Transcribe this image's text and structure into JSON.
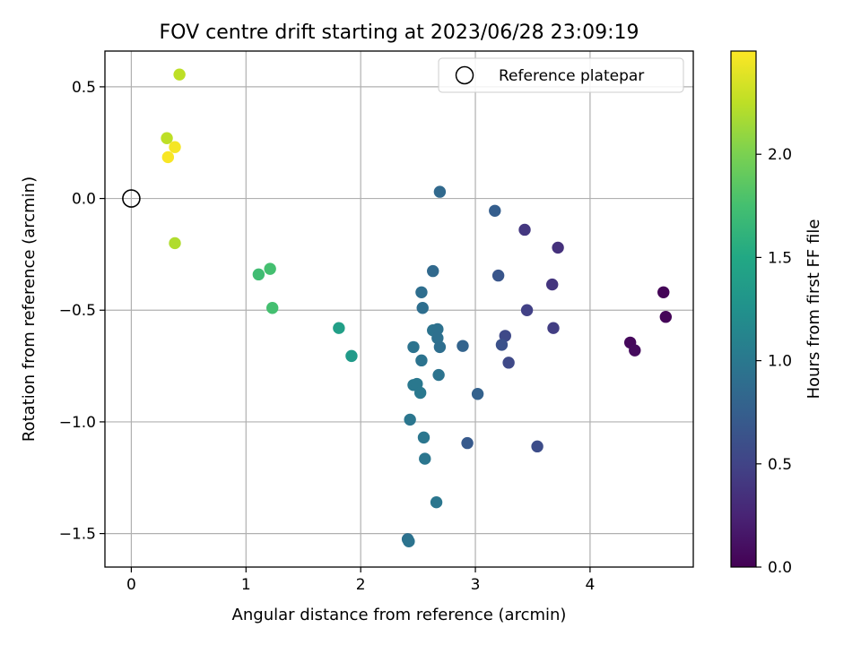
{
  "chart_data": {
    "type": "scatter",
    "title": "FOV centre drift starting at 2023/06/28 23:09:19",
    "xlabel": "Angular distance from reference (arcmin)",
    "ylabel": "Rotation from reference (arcmin)",
    "xlim": [
      -0.23,
      4.9
    ],
    "ylim": [
      -1.65,
      0.66
    ],
    "xticks": [
      0,
      1,
      2,
      3,
      4
    ],
    "yticks": [
      0.5,
      0.0,
      -0.5,
      -1.0,
      -1.5
    ],
    "xtick_labels": [
      "0",
      "1",
      "2",
      "3",
      "4"
    ],
    "ytick_labels": [
      "0.5",
      "0.0",
      "−0.5",
      "−1.0",
      "−1.5"
    ],
    "grid": true,
    "legend": {
      "position": "top-right",
      "entries": [
        "Reference platepar"
      ]
    },
    "reference_point": {
      "x": 0.0,
      "y": 0.0
    },
    "colorbar": {
      "label": "Hours from first FF file",
      "colormap": "viridis",
      "range": [
        0.0,
        2.5
      ],
      "ticks": [
        0.0,
        0.5,
        1.0,
        1.5,
        2.0
      ],
      "tick_labels": [
        "0.0",
        "0.5",
        "1.0",
        "1.5",
        "2.0"
      ]
    },
    "points": [
      {
        "x": 4.64,
        "y": -0.42,
        "c": 0.02
      },
      {
        "x": 4.66,
        "y": -0.53,
        "c": 0.03
      },
      {
        "x": 4.35,
        "y": -0.645,
        "c": 0.05
      },
      {
        "x": 4.39,
        "y": -0.68,
        "c": 0.07
      },
      {
        "x": 3.72,
        "y": -0.22,
        "c": 0.35
      },
      {
        "x": 3.43,
        "y": -0.14,
        "c": 0.4
      },
      {
        "x": 3.67,
        "y": -0.385,
        "c": 0.38
      },
      {
        "x": 3.68,
        "y": -0.58,
        "c": 0.45
      },
      {
        "x": 3.45,
        "y": -0.5,
        "c": 0.48
      },
      {
        "x": 3.26,
        "y": -0.615,
        "c": 0.55
      },
      {
        "x": 3.29,
        "y": -0.735,
        "c": 0.55
      },
      {
        "x": 3.54,
        "y": -1.11,
        "c": 0.58
      },
      {
        "x": 3.23,
        "y": -0.655,
        "c": 0.62
      },
      {
        "x": 3.2,
        "y": -0.345,
        "c": 0.66
      },
      {
        "x": 3.17,
        "y": -0.055,
        "c": 0.74
      },
      {
        "x": 2.93,
        "y": -1.095,
        "c": 0.7
      },
      {
        "x": 3.02,
        "y": -0.875,
        "c": 0.78
      },
      {
        "x": 2.89,
        "y": -0.66,
        "c": 0.8
      },
      {
        "x": 2.69,
        "y": 0.03,
        "c": 0.85
      },
      {
        "x": 2.63,
        "y": -0.325,
        "c": 0.85
      },
      {
        "x": 2.54,
        "y": -0.49,
        "c": 0.9
      },
      {
        "x": 2.53,
        "y": -0.42,
        "c": 0.9
      },
      {
        "x": 2.63,
        "y": -0.59,
        "c": 0.95
      },
      {
        "x": 2.67,
        "y": -0.585,
        "c": 0.93
      },
      {
        "x": 2.67,
        "y": -0.625,
        "c": 0.92
      },
      {
        "x": 2.69,
        "y": -0.665,
        "c": 0.9
      },
      {
        "x": 2.46,
        "y": -0.665,
        "c": 0.95
      },
      {
        "x": 2.53,
        "y": -0.725,
        "c": 0.95
      },
      {
        "x": 2.68,
        "y": -0.79,
        "c": 0.95
      },
      {
        "x": 2.46,
        "y": -0.835,
        "c": 1.0
      },
      {
        "x": 2.49,
        "y": -0.83,
        "c": 1.0
      },
      {
        "x": 2.52,
        "y": -0.87,
        "c": 1.0
      },
      {
        "x": 2.43,
        "y": -0.99,
        "c": 0.98
      },
      {
        "x": 2.55,
        "y": -1.07,
        "c": 0.98
      },
      {
        "x": 2.56,
        "y": -1.165,
        "c": 0.98
      },
      {
        "x": 2.66,
        "y": -1.36,
        "c": 0.98
      },
      {
        "x": 2.41,
        "y": -1.525,
        "c": 0.92
      },
      {
        "x": 2.42,
        "y": -1.535,
        "c": 0.95
      },
      {
        "x": 1.92,
        "y": -0.705,
        "c": 1.35
      },
      {
        "x": 1.81,
        "y": -0.58,
        "c": 1.4
      },
      {
        "x": 1.23,
        "y": -0.49,
        "c": 1.75
      },
      {
        "x": 1.11,
        "y": -0.34,
        "c": 1.72
      },
      {
        "x": 1.21,
        "y": -0.315,
        "c": 1.75
      },
      {
        "x": 0.38,
        "y": -0.2,
        "c": 2.2
      },
      {
        "x": 0.31,
        "y": 0.27,
        "c": 2.25
      },
      {
        "x": 0.42,
        "y": 0.555,
        "c": 2.25
      },
      {
        "x": 0.32,
        "y": 0.185,
        "c": 2.48
      },
      {
        "x": 0.38,
        "y": 0.23,
        "c": 2.47
      }
    ]
  }
}
